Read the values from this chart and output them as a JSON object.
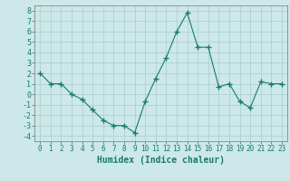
{
  "x": [
    0,
    1,
    2,
    3,
    4,
    5,
    6,
    7,
    8,
    9,
    10,
    11,
    12,
    13,
    14,
    15,
    16,
    17,
    18,
    19,
    20,
    21,
    22,
    23
  ],
  "y": [
    2,
    1,
    1,
    0,
    -0.5,
    -1.5,
    -2.5,
    -3,
    -3,
    -3.7,
    -0.7,
    1.5,
    3.5,
    6,
    7.8,
    4.5,
    4.5,
    0.7,
    1,
    -0.7,
    -1.3,
    1.2,
    1,
    1
  ],
  "line_color": "#1a7a6e",
  "marker": "+",
  "marker_size": 4,
  "bg_color": "#cce8e8",
  "grid_color": "#aacccc",
  "xlabel": "Humidex (Indice chaleur)",
  "xlim": [
    -0.5,
    23.5
  ],
  "ylim": [
    -4.5,
    8.5
  ],
  "yticks": [
    -4,
    -3,
    -2,
    -1,
    0,
    1,
    2,
    3,
    4,
    5,
    6,
    7,
    8
  ],
  "xticks": [
    0,
    1,
    2,
    3,
    4,
    5,
    6,
    7,
    8,
    9,
    10,
    11,
    12,
    13,
    14,
    15,
    16,
    17,
    18,
    19,
    20,
    21,
    22,
    23
  ],
  "tick_label_fontsize": 5.5,
  "xlabel_fontsize": 7.0,
  "axis_color": "#1a7a6e",
  "tick_color": "#1a7a6e",
  "spine_color": "#888888"
}
